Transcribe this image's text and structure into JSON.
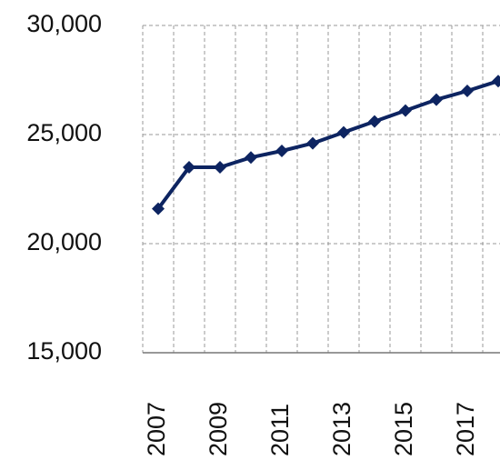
{
  "chart_data": {
    "type": "line",
    "categories": [
      "2007",
      null,
      "2009",
      null,
      "2011",
      null,
      "2013",
      null,
      "2015",
      null,
      "2017",
      null
    ],
    "values": [
      21600,
      23500,
      23500,
      23950,
      24250,
      24600,
      25100,
      25600,
      26100,
      26600,
      27000,
      27450
    ],
    "color": "#0d2461",
    "ylim": [
      15000,
      30000
    ],
    "yticks": [
      {
        "value": 15000,
        "label": "15,000"
      },
      {
        "value": 20000,
        "label": "20,000"
      },
      {
        "value": 25000,
        "label": "25,000"
      },
      {
        "value": 30000,
        "label": "30,000"
      }
    ],
    "grid": true
  }
}
